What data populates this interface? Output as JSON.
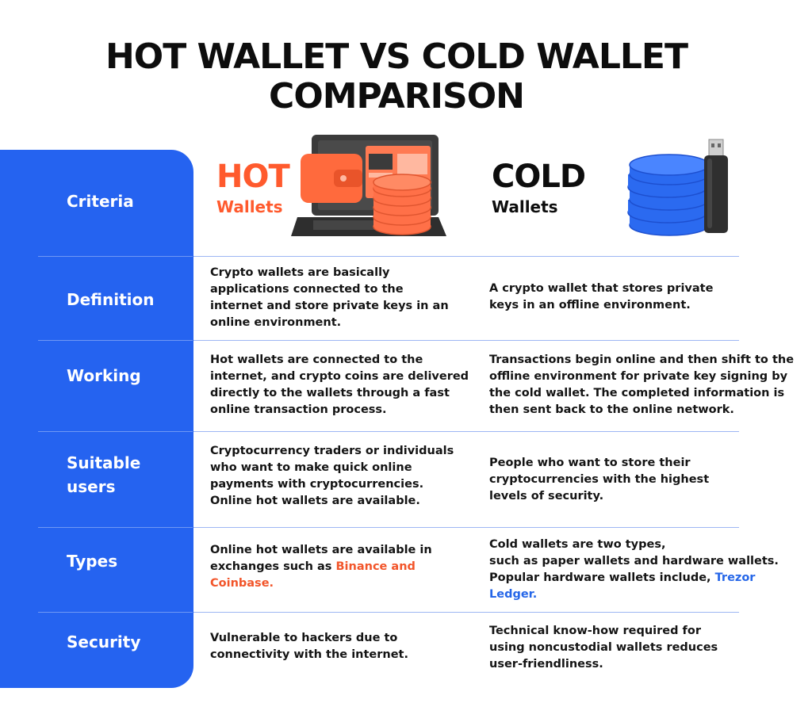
{
  "title": {
    "line1": "HOT WALLET VS COLD WALLET",
    "line2": "COMPARISON"
  },
  "header": {
    "hot_big": "HOT",
    "hot_small": "Wallets",
    "cold_big": "COLD",
    "cold_small": "Wallets"
  },
  "criteria": {
    "header": "Criteria",
    "definition": "Definition",
    "working": "Working",
    "suitable_1": "Suitable",
    "suitable_2": "users",
    "types": "Types",
    "security": "Security"
  },
  "hot": {
    "definition": [
      "Crypto wallets are basically",
      "applications connected to the",
      "internet and store private keys in an",
      "online environment."
    ],
    "working": [
      "Hot wallets are connected to the",
      "internet, and crypto coins are delivered",
      "directly to the wallets through a fast",
      "online transaction process."
    ],
    "suitable": [
      "Cryptocurrency traders or individuals",
      "who want to make quick online",
      "payments with cryptocurrencies.",
      "Online hot wallets are available."
    ],
    "types_1": "Online hot wallets are available in",
    "types_2_prefix": "exchanges such as ",
    "types_2_highlight": "Binance and",
    "types_3_highlight": "Coinbase.",
    "security": [
      "Vulnerable to hackers due to",
      "connectivity with the internet."
    ]
  },
  "cold": {
    "definition": [
      "A crypto wallet that stores private",
      "keys in an offline environment."
    ],
    "working": [
      "Transactions begin online and then shift to the",
      "offline environment for private key signing by",
      "the cold wallet. The completed information is",
      "then sent back to the online network."
    ],
    "suitable": [
      "People who want to store their",
      "cryptocurrencies with the highest",
      "levels of security."
    ],
    "types_1": "Cold wallets are two types,",
    "types_2": "such as paper wallets and hardware wallets.",
    "types_3_prefix": "Popular hardware wallets include, ",
    "types_3_highlight": "Trezor",
    "types_4_highlight": "Ledger.",
    "security": [
      "Technical know-how required for",
      "using noncustodial wallets reduces",
      "user-friendliness."
    ]
  },
  "colors": {
    "sidebar": "#2563f0",
    "hot_accent": "#ff5a2d",
    "link_blue": "#2566e8"
  }
}
